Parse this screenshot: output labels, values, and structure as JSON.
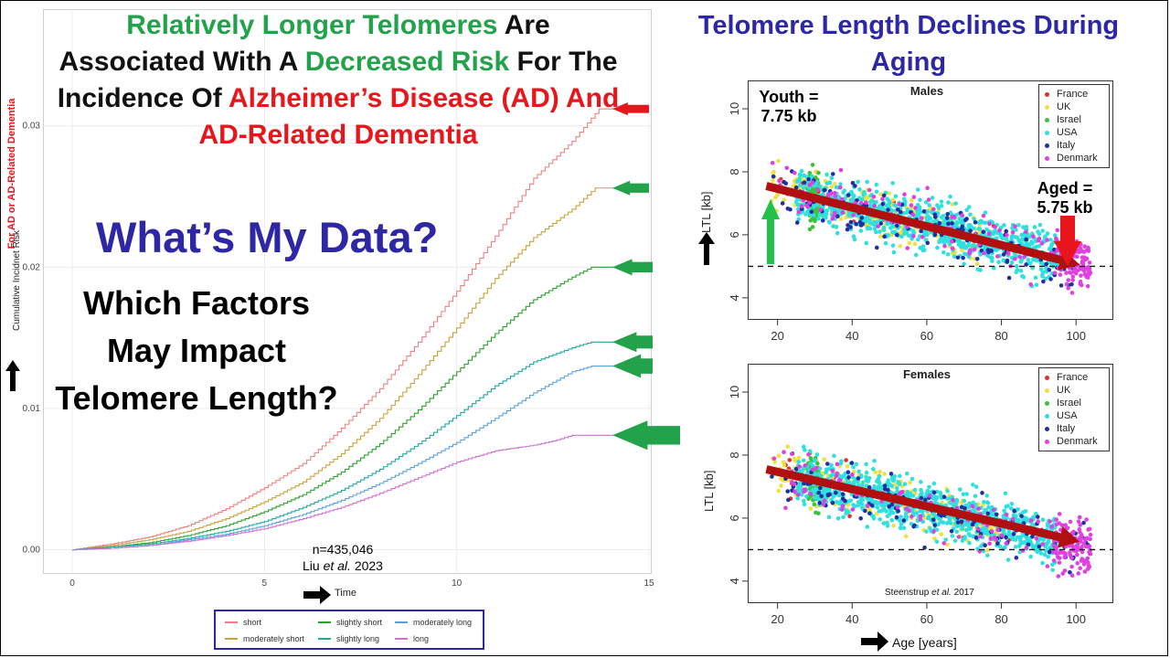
{
  "headline": {
    "part1_green": "Relatively Longer Telomeres",
    "part2": " Are Associated With A ",
    "part3_green": "Decreased Risk",
    "part4": " For The Incidence Of ",
    "part5_red": "Alzheimer’s Disease (AD) And AD-Related Dementia"
  },
  "question_big": "What’s My Data?",
  "question_sub": "Which Factors May Impact Telomere Length?",
  "study_note": {
    "n": "n=435,046",
    "authors": "Liu",
    "etal": "et al.",
    "year": "2023"
  },
  "right_title": "Telomere Length Declines During Aging",
  "callouts": {
    "youth_line1": "Youth =",
    "youth_line2": "7.75 kb",
    "aged_line1": "Aged =",
    "aged_line2": "5.75 kb"
  },
  "credit": {
    "authors": "Steenstrup",
    "etal": "et al.",
    "year": "2017"
  },
  "colors": {
    "green": "#22a24a",
    "red": "#e8151b",
    "navy": "#2e27a5",
    "arrow_dark_red": "#b01010"
  },
  "chart_data": [
    {
      "type": "line",
      "xlabel": "Time",
      "ylabel": "Cumulative Incidnet Risk",
      "ylabel_red": "For AD or AD-Related Dementia",
      "xlim": [
        0,
        15
      ],
      "ylim": [
        -0.001,
        0.0305
      ],
      "x_ticks": [
        0,
        5,
        10,
        15
      ],
      "y_ticks": [
        0.0,
        0.01,
        0.02,
        0.03
      ],
      "y_tick_labels": [
        "0.00",
        "0.01",
        "0.02",
        "0.03"
      ],
      "legend_position": "bottom",
      "series": [
        {
          "name": "short",
          "color": "#f08080",
          "x": [
            0,
            1,
            2,
            3,
            4,
            5,
            6,
            7,
            8,
            9,
            10,
            11,
            12,
            13,
            13.7,
            14.2
          ],
          "y": [
            0,
            0.0004,
            0.0009,
            0.0017,
            0.0029,
            0.0044,
            0.0061,
            0.0086,
            0.0114,
            0.0147,
            0.0183,
            0.0222,
            0.0263,
            0.0289,
            0.0312,
            0.0312
          ]
        },
        {
          "name": "moderately short",
          "color": "#c8a23a",
          "x": [
            0,
            1,
            2,
            3,
            4,
            5,
            6,
            7,
            8,
            9,
            10,
            11,
            12,
            13,
            13.6,
            14.2
          ],
          "y": [
            0,
            0.0003,
            0.0007,
            0.0013,
            0.0022,
            0.0034,
            0.0048,
            0.0068,
            0.0093,
            0.0124,
            0.0157,
            0.0192,
            0.0221,
            0.0241,
            0.0256,
            0.0256
          ]
        },
        {
          "name": "slightly short",
          "color": "#2ca02c",
          "x": [
            0,
            1,
            2,
            3,
            4,
            5,
            6,
            7,
            8,
            9,
            10,
            11,
            12,
            13,
            13.5,
            14.2
          ],
          "y": [
            0,
            0.0002,
            0.0005,
            0.001,
            0.0017,
            0.0027,
            0.0039,
            0.0055,
            0.0075,
            0.0099,
            0.0126,
            0.0153,
            0.0177,
            0.0193,
            0.02,
            0.02
          ]
        },
        {
          "name": "slightly long",
          "color": "#1fa9a0",
          "x": [
            0,
            1,
            2,
            3,
            4,
            5,
            6,
            7,
            8,
            9,
            10,
            11,
            12,
            13,
            13.5,
            14.2
          ],
          "y": [
            0,
            0.0002,
            0.0004,
            0.0008,
            0.0013,
            0.002,
            0.003,
            0.0042,
            0.0057,
            0.0075,
            0.0095,
            0.0116,
            0.0133,
            0.0143,
            0.0147,
            0.0147
          ]
        },
        {
          "name": "moderately long",
          "color": "#5aa0e0",
          "x": [
            0,
            1,
            2,
            3,
            4,
            5,
            6,
            7,
            8,
            9,
            10,
            11,
            12,
            13,
            13.5,
            14.2
          ],
          "y": [
            0,
            0.0001,
            0.0003,
            0.0007,
            0.0011,
            0.0017,
            0.0025,
            0.0035,
            0.0047,
            0.0061,
            0.0076,
            0.0093,
            0.0111,
            0.0126,
            0.013,
            0.013
          ]
        },
        {
          "name": "long",
          "color": "#d070d0",
          "x": [
            0,
            1,
            2,
            3,
            4,
            5,
            6,
            7,
            8,
            9,
            10,
            11,
            12,
            12.5,
            13,
            14.2
          ],
          "y": [
            0,
            0.0001,
            0.0003,
            0.0006,
            0.001,
            0.0015,
            0.0022,
            0.003,
            0.004,
            0.0051,
            0.0062,
            0.007,
            0.0074,
            0.0077,
            0.0081,
            0.0081
          ]
        }
      ]
    },
    {
      "type": "scatter",
      "title": "Males",
      "xlabel": "",
      "ylabel": "LTL [kb]",
      "xlim": [
        12,
        110
      ],
      "ylim": [
        3.3,
        10.9
      ],
      "x_ticks": [
        20,
        40,
        60,
        80,
        100
      ],
      "y_ticks": [
        4,
        6,
        8,
        10
      ],
      "reference_line_y": 5.0,
      "trend": {
        "x": [
          17,
          101
        ],
        "y": [
          7.55,
          5.05
        ]
      },
      "legend_position": "top-right",
      "series": [
        {
          "name": "France",
          "color": "#e03030",
          "age_range": [
            18,
            90
          ]
        },
        {
          "name": "UK",
          "color": "#f0e040",
          "age_range": [
            18,
            75
          ]
        },
        {
          "name": "Israel",
          "color": "#40c040",
          "age_range": [
            28,
            31
          ]
        },
        {
          "name": "USA",
          "color": "#30e0e0",
          "age_range": [
            25,
            95
          ]
        },
        {
          "name": "Italy",
          "color": "#2030a0",
          "age_range": [
            18,
            104
          ]
        },
        {
          "name": "Denmark",
          "color": "#e040e0",
          "age_range": [
            18,
            104
          ]
        }
      ]
    },
    {
      "type": "scatter",
      "title": "Females",
      "xlabel": "Age [years]",
      "ylabel": "LTL [kb]",
      "xlim": [
        12,
        110
      ],
      "ylim": [
        3.3,
        10.9
      ],
      "x_ticks": [
        20,
        40,
        60,
        80,
        100
      ],
      "y_ticks": [
        4,
        6,
        8,
        10
      ],
      "reference_line_y": 5.0,
      "trend": {
        "x": [
          17,
          101
        ],
        "y": [
          7.55,
          5.25
        ]
      },
      "legend_position": "top-right",
      "series": [
        {
          "name": "France",
          "color": "#e03030",
          "age_range": [
            18,
            90
          ]
        },
        {
          "name": "UK",
          "color": "#f0e040",
          "age_range": [
            18,
            80
          ]
        },
        {
          "name": "Israel",
          "color": "#40c040",
          "age_range": [
            28,
            31
          ]
        },
        {
          "name": "USA",
          "color": "#30e0e0",
          "age_range": [
            25,
            95
          ]
        },
        {
          "name": "Italy",
          "color": "#2030a0",
          "age_range": [
            18,
            104
          ]
        },
        {
          "name": "Denmark",
          "color": "#e040e0",
          "age_range": [
            18,
            104
          ]
        }
      ]
    }
  ]
}
